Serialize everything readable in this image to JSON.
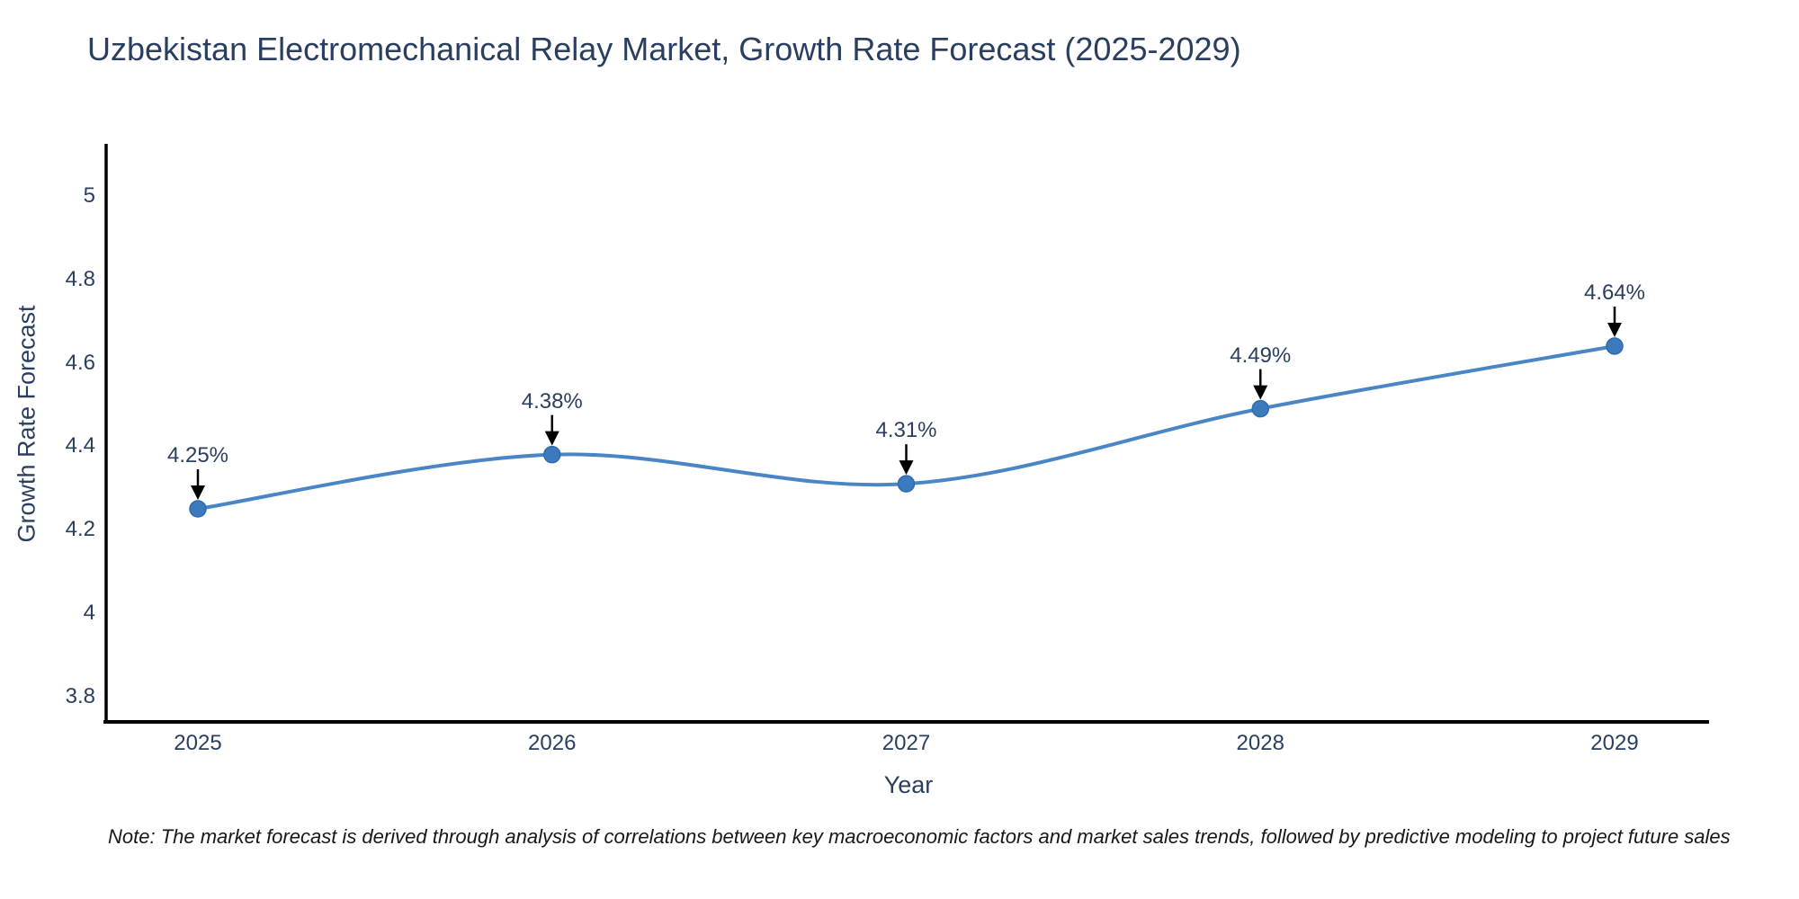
{
  "chart_data": {
    "type": "line",
    "title": "Uzbekistan Electromechanical Relay Market, Growth Rate Forecast (2025-2029)",
    "xlabel": "Year",
    "ylabel": "Growth Rate Forecast",
    "categories": [
      "2025",
      "2026",
      "2027",
      "2028",
      "2029"
    ],
    "values": [
      4.25,
      4.38,
      4.31,
      4.49,
      4.64
    ],
    "point_labels": [
      "4.25%",
      "4.38%",
      "4.31%",
      "4.49%",
      "4.64%"
    ],
    "ytick_labels": [
      "5",
      "4.8",
      "4.6",
      "4.4",
      "4.2",
      "4",
      "3.8"
    ],
    "ytick_values": [
      5,
      4.8,
      4.6,
      4.4,
      4.2,
      4,
      3.8
    ],
    "ylim": [
      3.74,
      5.12
    ],
    "grid": false,
    "line_style": "spline",
    "legend": "none",
    "colors": {
      "line": "#4a86c5",
      "marker": "#3b7abc",
      "marker_edge": "#2f6cad",
      "annotation_arrow": "#000000",
      "axis_line": "#000000",
      "text": "#2a3f5f"
    }
  },
  "footnote": "Note: The market forecast is derived through analysis of correlations between key macroeconomic factors and market sales trends, followed by predictive modeling to project future sales"
}
